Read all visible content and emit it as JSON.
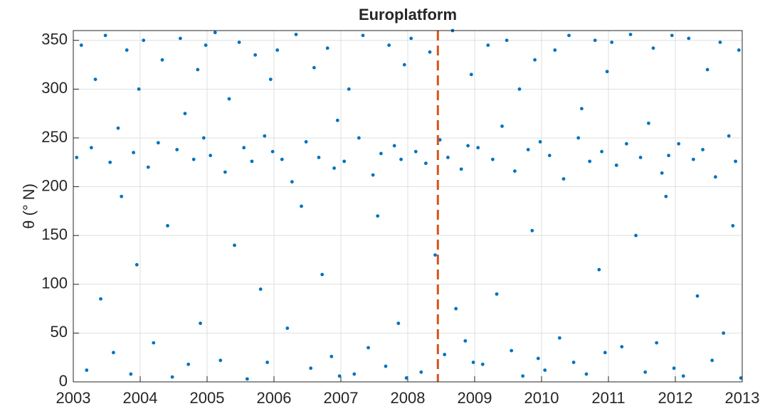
{
  "chart_data": {
    "type": "scatter",
    "title": "Europlatform",
    "y_label": "θ (° N)",
    "color": "#0072BD",
    "vline": 2008.45,
    "vline_color": "#D95319",
    "grid": true,
    "xlim": [
      2003,
      2013
    ],
    "xticks": [
      2003,
      2004,
      2005,
      2006,
      2007,
      2008,
      2009,
      2010,
      2011,
      2012,
      2013
    ],
    "ylim": [
      0,
      360
    ],
    "yticks": [
      0,
      50,
      100,
      150,
      200,
      250,
      300,
      350
    ],
    "x": [
      2003.05,
      2003.12,
      2003.2,
      2003.27,
      2003.33,
      2003.41,
      2003.48,
      2003.55,
      2003.6,
      2003.67,
      2003.72,
      2003.8,
      2003.86,
      2003.9,
      2003.95,
      2003.98,
      2004.05,
      2004.12,
      2004.2,
      2004.27,
      2004.33,
      2004.41,
      2004.48,
      2004.55,
      2004.6,
      2004.67,
      2004.72,
      2004.8,
      2004.86,
      2004.9,
      2004.95,
      2004.98,
      2005.05,
      2005.12,
      2005.2,
      2005.27,
      2005.33,
      2005.41,
      2005.48,
      2005.55,
      2005.6,
      2005.67,
      2005.72,
      2005.8,
      2005.86,
      2005.9,
      2005.95,
      2005.98,
      2006.05,
      2006.12,
      2006.2,
      2006.27,
      2006.33,
      2006.41,
      2006.48,
      2006.55,
      2006.6,
      2006.67,
      2006.72,
      2006.8,
      2006.86,
      2006.9,
      2006.95,
      2006.98,
      2007.05,
      2007.12,
      2007.2,
      2007.27,
      2007.33,
      2007.41,
      2007.48,
      2007.55,
      2007.6,
      2007.67,
      2007.72,
      2007.8,
      2007.86,
      2007.9,
      2007.95,
      2007.98,
      2008.05,
      2008.12,
      2008.2,
      2008.27,
      2008.33,
      2008.41,
      2008.48,
      2008.55,
      2008.6,
      2008.67,
      2008.72,
      2008.8,
      2008.86,
      2008.9,
      2008.95,
      2008.98,
      2009.05,
      2009.12,
      2009.2,
      2009.27,
      2009.33,
      2009.41,
      2009.48,
      2009.55,
      2009.6,
      2009.67,
      2009.72,
      2009.8,
      2009.86,
      2009.9,
      2009.95,
      2009.98,
      2010.05,
      2010.12,
      2010.2,
      2010.27,
      2010.33,
      2010.41,
      2010.48,
      2010.55,
      2010.6,
      2010.67,
      2010.72,
      2010.8,
      2010.86,
      2010.9,
      2010.95,
      2010.98,
      2011.05,
      2011.12,
      2011.2,
      2011.27,
      2011.33,
      2011.41,
      2011.48,
      2011.55,
      2011.6,
      2011.67,
      2011.72,
      2011.8,
      2011.86,
      2011.9,
      2011.95,
      2011.98,
      2012.05,
      2012.12,
      2012.2,
      2012.27,
      2012.33,
      2012.41,
      2012.48,
      2012.55,
      2012.6,
      2012.67,
      2012.72,
      2012.8,
      2012.86,
      2012.9,
      2012.95,
      2012.98
    ],
    "values": [
      230,
      345,
      12,
      240,
      310,
      85,
      355,
      225,
      30,
      260,
      190,
      340,
      8,
      235,
      120,
      300,
      350,
      220,
      40,
      245,
      330,
      160,
      5,
      238,
      352,
      275,
      18,
      228,
      320,
      60,
      250,
      345,
      232,
      358,
      22,
      215,
      290,
      140,
      348,
      240,
      3,
      226,
      335,
      95,
      252,
      20,
      310,
      236,
      340,
      228,
      55,
      205,
      356,
      180,
      246,
      14,
      322,
      230,
      110,
      342,
      26,
      219,
      268,
      6,
      226,
      300,
      8,
      250,
      355,
      35,
      212,
      170,
      234,
      16,
      345,
      242,
      60,
      228,
      325,
      4,
      352,
      236,
      10,
      224,
      338,
      130,
      248,
      28,
      230,
      360,
      75,
      218,
      42,
      242,
      315,
      20,
      240,
      18,
      345,
      228,
      90,
      262,
      350,
      32,
      216,
      300,
      6,
      238,
      155,
      330,
      24,
      246,
      12,
      232,
      340,
      45,
      208,
      355,
      20,
      250,
      280,
      8,
      226,
      350,
      115,
      236,
      30,
      318,
      348,
      222,
      36,
      244,
      356,
      150,
      230,
      10,
      265,
      342,
      40,
      214,
      190,
      232,
      355,
      14,
      244,
      6,
      352,
      228,
      88,
      238,
      320,
      22,
      210,
      348,
      50,
      252,
      160,
      226,
      340,
      4
    ]
  }
}
